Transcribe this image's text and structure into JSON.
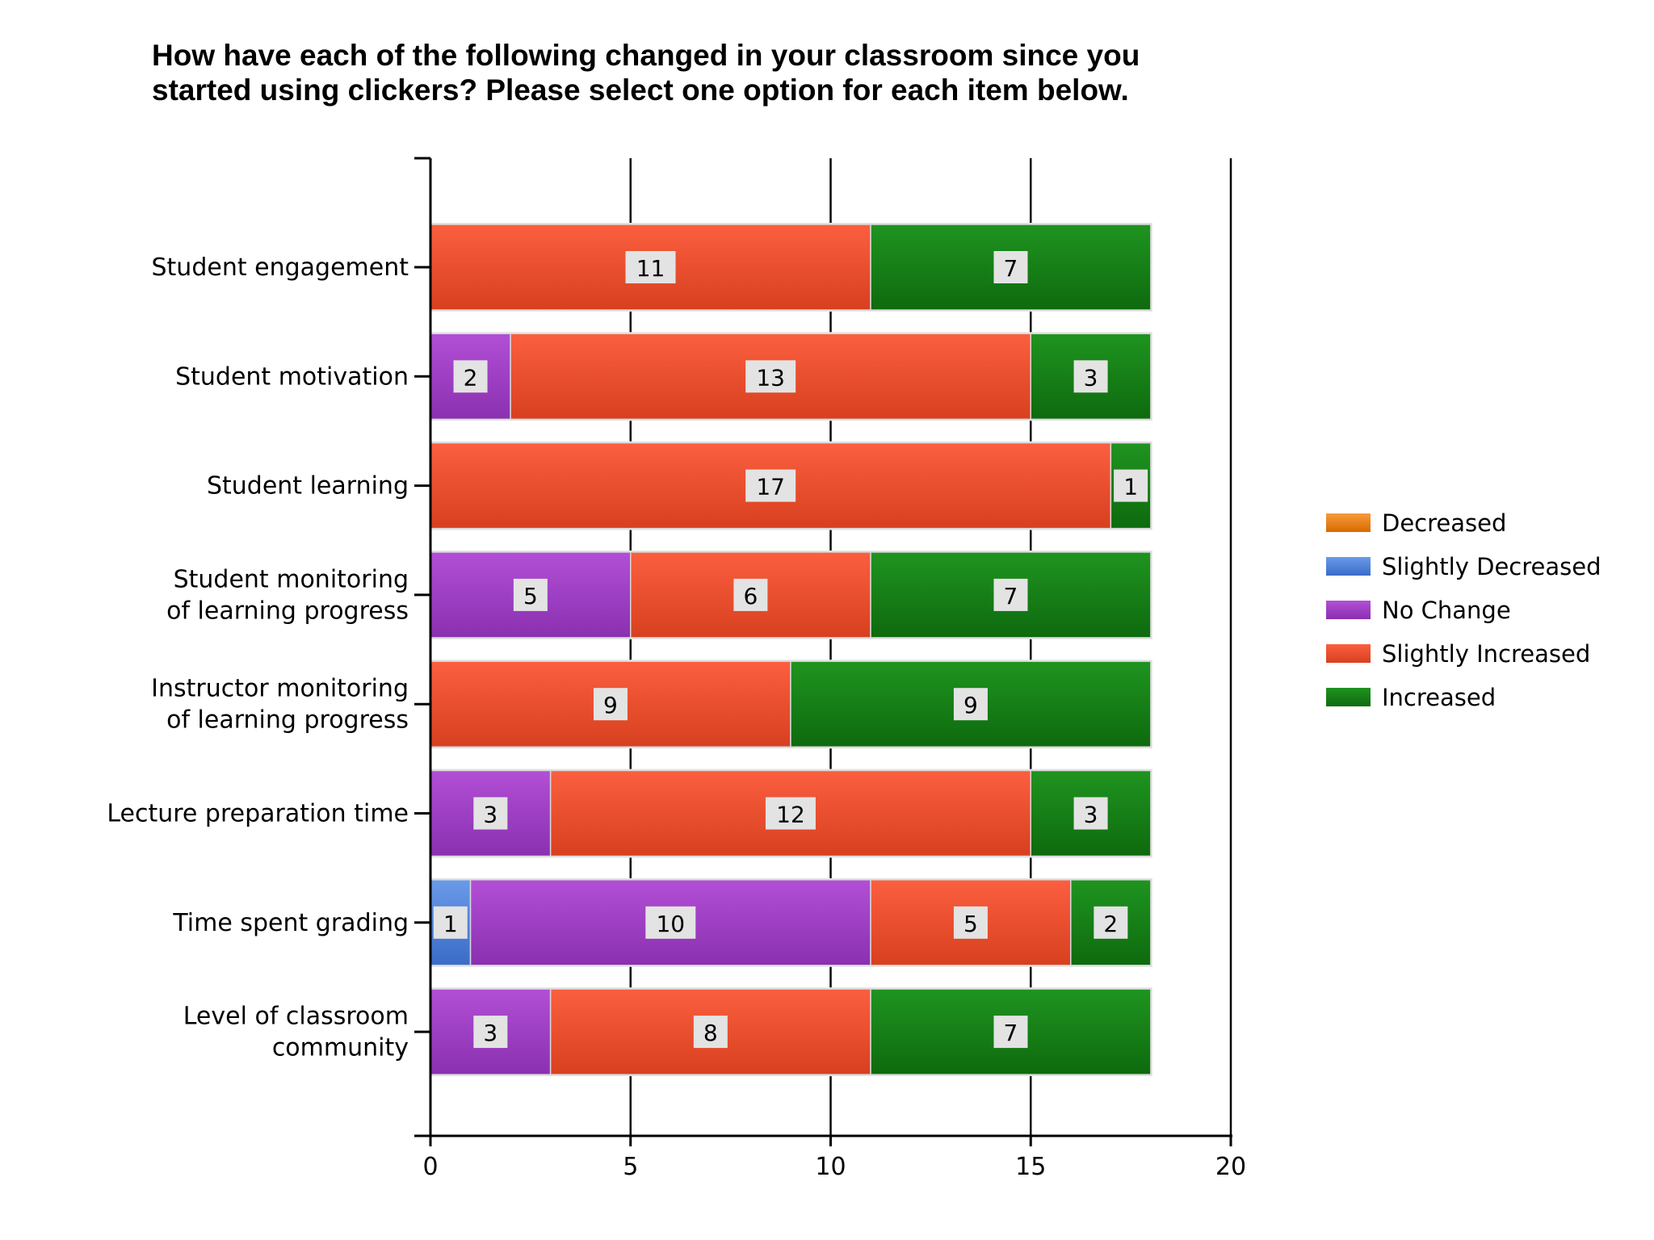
{
  "chart_data": {
    "type": "bar",
    "orientation": "horizontal",
    "stacked": true,
    "title": [
      "How have each of the following changed in your classroom since you",
      "started using clickers?   Please select one option for each item below."
    ],
    "xlabel": "",
    "ylabel": "",
    "xlim": [
      0,
      20
    ],
    "xticks": [
      0,
      5,
      10,
      15,
      20
    ],
    "grid": true,
    "legend_position": "right",
    "categories": [
      [
        "Student engagement"
      ],
      [
        "Student motivation"
      ],
      [
        "Student learning"
      ],
      [
        "Student monitoring",
        "of learning progress"
      ],
      [
        "Instructor monitoring",
        "of learning progress"
      ],
      [
        "Lecture preparation time"
      ],
      [
        "Time spent grading"
      ],
      [
        "Level of classroom",
        "community"
      ]
    ],
    "series": [
      {
        "name": "Decreased",
        "color": "#ee7d0e",
        "values": [
          0,
          0,
          0,
          0,
          0,
          0,
          0,
          0
        ]
      },
      {
        "name": "Slightly Decreased",
        "color": "#4a80d8",
        "values": [
          0,
          0,
          0,
          0,
          0,
          0,
          1,
          0
        ]
      },
      {
        "name": "No Change",
        "color": "#a23fc8",
        "values": [
          0,
          2,
          0,
          5,
          0,
          3,
          10,
          3
        ]
      },
      {
        "name": "Slightly Increased",
        "color": "#ec4a2e",
        "values": [
          11,
          13,
          17,
          6,
          9,
          12,
          5,
          8
        ]
      },
      {
        "name": "Increased",
        "color": "#137d16",
        "values": [
          7,
          3,
          1,
          7,
          9,
          3,
          2,
          7
        ]
      }
    ]
  }
}
